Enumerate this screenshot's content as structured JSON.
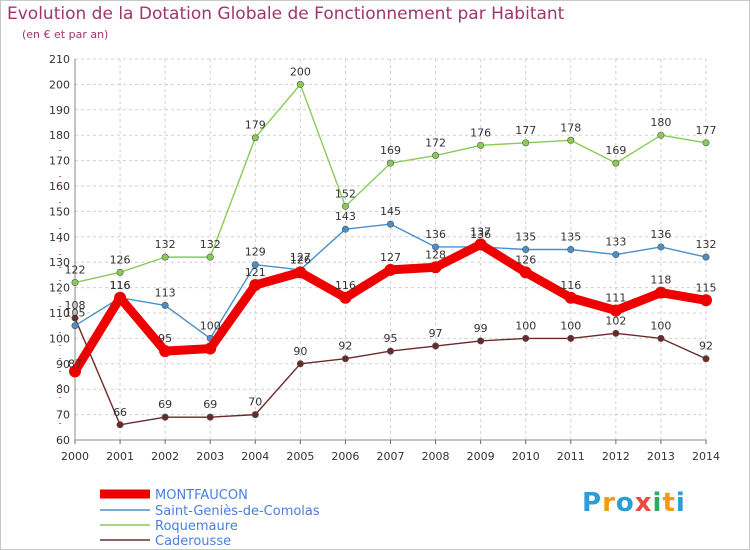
{
  "header": {
    "title": "Evolution de la Dotation Globale de Fonctionnement par Habitant",
    "subtitle": "(en € et par an)"
  },
  "logo": {
    "text": "Proxiti",
    "letters": [
      "P",
      "r",
      "o",
      "x",
      "i",
      "t",
      "i"
    ],
    "colors": [
      "#2a9fd6",
      "#f39c12",
      "#2a9fd6",
      "#e74c3c",
      "#27ae60",
      "#f39c12",
      "#2a9fd6"
    ]
  },
  "chart_data": {
    "type": "line",
    "title": "Evolution de la Dotation Globale de Fonctionnement par Habitant",
    "subtitle": "(en € et par an)",
    "x": [
      2000,
      2001,
      2002,
      2003,
      2004,
      2005,
      2006,
      2007,
      2008,
      2009,
      2010,
      2011,
      2012,
      2013,
      2014
    ],
    "ylim": [
      60,
      210
    ],
    "yticks": [
      60,
      70,
      80,
      90,
      100,
      110,
      120,
      130,
      140,
      150,
      160,
      170,
      180,
      190,
      200,
      210
    ],
    "grid": true,
    "legend_position": "bottom-left",
    "series": [
      {
        "name": "MONTFAUCON",
        "color": "#ee0000",
        "values": [
          87,
          116,
          95,
          96,
          121,
          126,
          116,
          127,
          128,
          137,
          126,
          116,
          111,
          118,
          115
        ],
        "labels": [
          "87",
          "116",
          "95",
          "",
          "121",
          "126",
          "116",
          "127",
          "128",
          "137",
          "126",
          "116",
          "111",
          "118",
          "115"
        ]
      },
      {
        "name": "Saint-Geniès-de-Comolas",
        "color": "#4a90c8",
        "values": [
          105,
          116,
          113,
          100,
          129,
          127,
          143,
          145,
          136,
          136,
          135,
          135,
          133,
          136,
          132
        ],
        "labels": [
          "105",
          "116",
          "113",
          "100",
          "129",
          "127",
          "143",
          "145",
          "136",
          "136",
          "135",
          "135",
          "133",
          "136",
          "132"
        ]
      },
      {
        "name": "Roquemaure",
        "color": "#88cc55",
        "values": [
          122,
          126,
          132,
          132,
          179,
          200,
          152,
          169,
          172,
          176,
          177,
          178,
          169,
          180,
          177
        ],
        "labels": [
          "122",
          "126",
          "132",
          "132",
          "179",
          "200",
          "152",
          "169",
          "172",
          "176",
          "177",
          "178",
          "169",
          "180",
          "177"
        ]
      },
      {
        "name": "Caderousse",
        "color": "#6b2a2a",
        "values": [
          108,
          66,
          69,
          69,
          70,
          90,
          92,
          95,
          97,
          99,
          100,
          100,
          102,
          100,
          92
        ],
        "labels": [
          "108",
          "66",
          "69",
          "69",
          "70",
          "90",
          "92",
          "95",
          "97",
          "99",
          "100",
          "100",
          "102",
          "100",
          "92"
        ]
      }
    ]
  }
}
